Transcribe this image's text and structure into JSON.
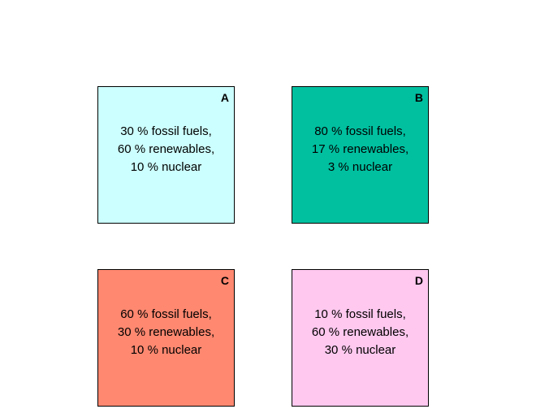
{
  "cards": [
    {
      "letter": "A",
      "color": "#ccffff",
      "lines": [
        "30 % fossil fuels,",
        "60 % renewables,",
        "10 % nuclear"
      ]
    },
    {
      "letter": "B",
      "color": "#00c0a0",
      "lines": [
        "80 % fossil fuels,",
        "17 % renewables,",
        "3 % nuclear"
      ]
    },
    {
      "letter": "C",
      "color": "#ff8870",
      "lines": [
        "60 % fossil fuels,",
        "30 % renewables,",
        "10 % nuclear"
      ]
    },
    {
      "letter": "D",
      "color": "#ffc8ef",
      "lines": [
        "10 % fossil fuels,",
        "60 % renewables,",
        "30 % nuclear"
      ]
    }
  ]
}
